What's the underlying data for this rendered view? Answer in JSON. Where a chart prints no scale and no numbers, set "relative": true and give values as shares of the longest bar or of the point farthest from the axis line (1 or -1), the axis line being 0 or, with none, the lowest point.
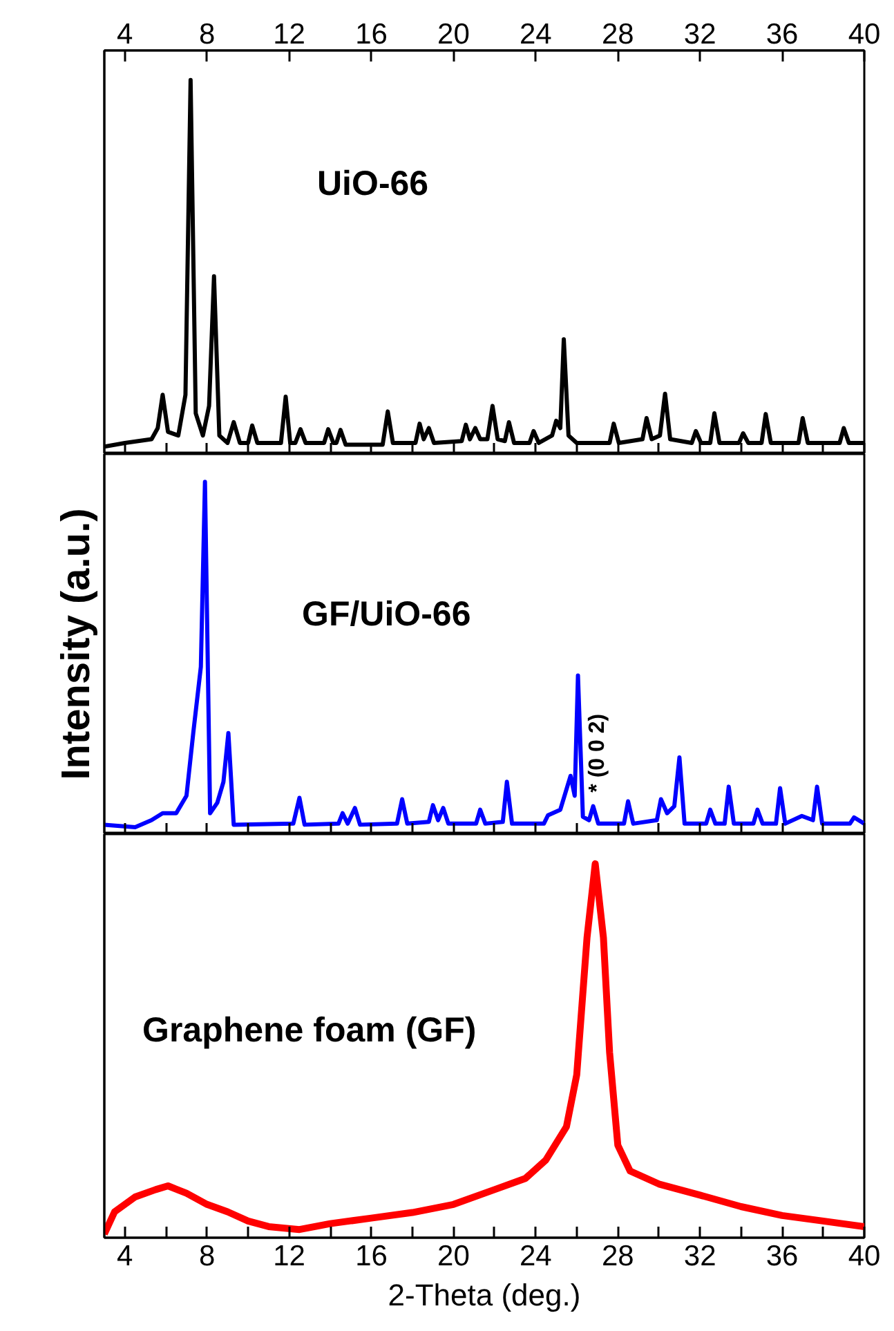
{
  "chart_data": [
    {
      "type": "line",
      "relative": true,
      "xlim": [
        3,
        40
      ],
      "xticks": [
        4,
        {
          "value": 6,
          "label": null
        },
        8,
        {
          "value": 10,
          "label": null
        },
        12,
        {
          "value": 14,
          "label": null
        },
        16,
        {
          "value": 18,
          "label": null
        },
        20,
        {
          "value": 22,
          "label": null
        },
        24,
        {
          "value": 26,
          "label": null
        },
        28,
        {
          "value": 30,
          "label": null
        },
        32,
        {
          "value": 34,
          "label": null
        },
        36,
        {
          "value": 38,
          "label": null
        },
        40
      ],
      "x2lim": [
        3,
        40
      ],
      "x2ticks": [
        4,
        8,
        12,
        16,
        20,
        24,
        28,
        32,
        36,
        40
      ],
      "tick_labels": false,
      "x": [
        3.0,
        4.0,
        5.3,
        5.6,
        5.84,
        6.1,
        6.6,
        6.95,
        7.2,
        7.45,
        7.8,
        8.1,
        8.34,
        8.6,
        9.0,
        9.3,
        9.6,
        10.0,
        10.2,
        10.45,
        11.6,
        11.83,
        12.05,
        12.3,
        12.55,
        12.8,
        13.7,
        13.9,
        14.15,
        14.3,
        14.5,
        14.75,
        16.55,
        16.8,
        17.05,
        18.15,
        18.35,
        18.55,
        18.8,
        19.05,
        20.4,
        20.6,
        20.8,
        21.06,
        21.3,
        21.65,
        21.9,
        22.15,
        22.5,
        22.7,
        22.95,
        23.7,
        23.9,
        24.15,
        24.8,
        25.0,
        25.2,
        25.37,
        25.6,
        26.0,
        27.6,
        27.8,
        28.05,
        29.2,
        29.4,
        29.65,
        30.05,
        30.3,
        30.55,
        31.6,
        31.8,
        32.05,
        32.5,
        32.7,
        32.95,
        33.9,
        34.1,
        34.35,
        35.0,
        35.2,
        35.45,
        36.8,
        37.0,
        37.25,
        38.8,
        39.0,
        39.25,
        40.0
      ],
      "series": [
        {
          "name": "UiO-66",
          "color": "#000000",
          "values": [
            0.01,
            0.02,
            0.03,
            0.06,
            0.15,
            0.05,
            0.04,
            0.15,
            1.0,
            0.1,
            0.04,
            0.12,
            0.47,
            0.04,
            0.02,
            0.076,
            0.02,
            0.02,
            0.067,
            0.02,
            0.02,
            0.145,
            0.02,
            0.02,
            0.057,
            0.02,
            0.02,
            0.057,
            0.02,
            0.02,
            0.055,
            0.015,
            0.015,
            0.105,
            0.02,
            0.02,
            0.072,
            0.03,
            0.06,
            0.02,
            0.025,
            0.069,
            0.03,
            0.06,
            0.03,
            0.03,
            0.12,
            0.03,
            0.025,
            0.076,
            0.02,
            0.02,
            0.052,
            0.02,
            0.04,
            0.08,
            0.06,
            0.3,
            0.04,
            0.02,
            0.02,
            0.072,
            0.02,
            0.03,
            0.087,
            0.03,
            0.04,
            0.153,
            0.03,
            0.02,
            0.052,
            0.02,
            0.02,
            0.1,
            0.02,
            0.02,
            0.046,
            0.02,
            0.02,
            0.098,
            0.02,
            0.02,
            0.087,
            0.02,
            0.02,
            0.06,
            0.02,
            0.02
          ]
        }
      ]
    },
    {
      "type": "line",
      "relative": true,
      "xlim": [
        3,
        40
      ],
      "xticks": [
        4,
        {
          "value": 6,
          "label": null
        },
        8,
        {
          "value": 10,
          "label": null
        },
        12,
        {
          "value": 14,
          "label": null
        },
        16,
        {
          "value": 18,
          "label": null
        },
        20,
        {
          "value": 22,
          "label": null
        },
        24,
        {
          "value": 26,
          "label": null
        },
        28,
        {
          "value": 30,
          "label": null
        },
        32,
        {
          "value": 34,
          "label": null
        },
        36,
        {
          "value": 38,
          "label": null
        },
        40
      ],
      "tick_labels": false,
      "ylabel": "Intensity (a.u.)",
      "annotations": [
        {
          "text": "* (0 0 2)",
          "x": 26.8,
          "y": 0.07
        }
      ],
      "x": [
        3.0,
        4.5,
        5.3,
        5.84,
        6.5,
        7.0,
        7.33,
        7.7,
        7.9,
        8.15,
        8.5,
        8.8,
        9.04,
        9.3,
        12.2,
        12.5,
        12.75,
        14.4,
        14.6,
        14.85,
        15.2,
        15.45,
        17.25,
        17.5,
        17.75,
        18.8,
        19.0,
        19.25,
        19.5,
        19.75,
        21.1,
        21.3,
        21.55,
        22.4,
        22.6,
        22.85,
        24.4,
        24.6,
        25.2,
        25.7,
        25.9,
        26.06,
        26.3,
        26.6,
        26.8,
        27.05,
        28.3,
        28.5,
        28.75,
        29.9,
        30.1,
        30.4,
        30.75,
        31.0,
        31.25,
        32.3,
        32.5,
        32.75,
        33.2,
        33.4,
        33.65,
        34.6,
        34.8,
        35.05,
        35.7,
        35.9,
        36.15,
        36.96,
        37.5,
        37.7,
        37.95,
        39.3,
        39.5,
        40.0
      ],
      "series": [
        {
          "name": "GF/UiO-66",
          "color": "#0000ff",
          "values": [
            0.017,
            0.01,
            0.03,
            0.05,
            0.05,
            0.1,
            0.28,
            0.47,
            1.0,
            0.05,
            0.08,
            0.14,
            0.28,
            0.017,
            0.02,
            0.094,
            0.017,
            0.02,
            0.05,
            0.02,
            0.065,
            0.017,
            0.02,
            0.09,
            0.02,
            0.025,
            0.073,
            0.03,
            0.065,
            0.02,
            0.02,
            0.06,
            0.02,
            0.025,
            0.14,
            0.02,
            0.02,
            0.044,
            0.06,
            0.157,
            0.1,
            0.445,
            0.04,
            0.03,
            0.07,
            0.02,
            0.02,
            0.084,
            0.02,
            0.03,
            0.09,
            0.05,
            0.07,
            0.21,
            0.02,
            0.02,
            0.06,
            0.02,
            0.02,
            0.126,
            0.02,
            0.02,
            0.06,
            0.02,
            0.02,
            0.122,
            0.02,
            0.042,
            0.03,
            0.126,
            0.02,
            0.02,
            0.038,
            0.02
          ]
        }
      ]
    },
    {
      "type": "line",
      "relative": true,
      "xlim": [
        3,
        40
      ],
      "xticks": [
        4,
        {
          "value": 6,
          "label": null
        },
        8,
        {
          "value": 10,
          "label": null
        },
        12,
        {
          "value": 14,
          "label": null
        },
        16,
        {
          "value": 18,
          "label": null
        },
        20,
        {
          "value": 22,
          "label": null
        },
        24,
        {
          "value": 26,
          "label": null
        },
        28,
        {
          "value": 30,
          "label": null
        },
        32,
        {
          "value": 34,
          "label": null
        },
        36,
        {
          "value": 38,
          "label": null
        },
        40
      ],
      "tick_labels": "x",
      "xlabel": "2-Theta (deg.)",
      "x": [
        3.0,
        3.5,
        4.5,
        5.5,
        6.1,
        7.0,
        8.0,
        9.0,
        10.0,
        11.0,
        12.5,
        14.0,
        16.0,
        18.0,
        20.0,
        22.0,
        23.5,
        24.5,
        25.5,
        26.0,
        26.5,
        26.9,
        27.3,
        27.6,
        28.0,
        28.6,
        30.0,
        32.0,
        34.0,
        36.0,
        38.0,
        40.0
      ],
      "series": [
        {
          "name": "Graphene foam (GF)",
          "color": "#ff0000",
          "values": [
            0.0,
            0.06,
            0.1,
            0.12,
            0.13,
            0.11,
            0.08,
            0.06,
            0.035,
            0.02,
            0.012,
            0.028,
            0.043,
            0.058,
            0.08,
            0.12,
            0.15,
            0.2,
            0.29,
            0.43,
            0.8,
            1.0,
            0.8,
            0.49,
            0.24,
            0.17,
            0.135,
            0.105,
            0.074,
            0.05,
            0.035,
            0.02
          ]
        }
      ]
    }
  ]
}
